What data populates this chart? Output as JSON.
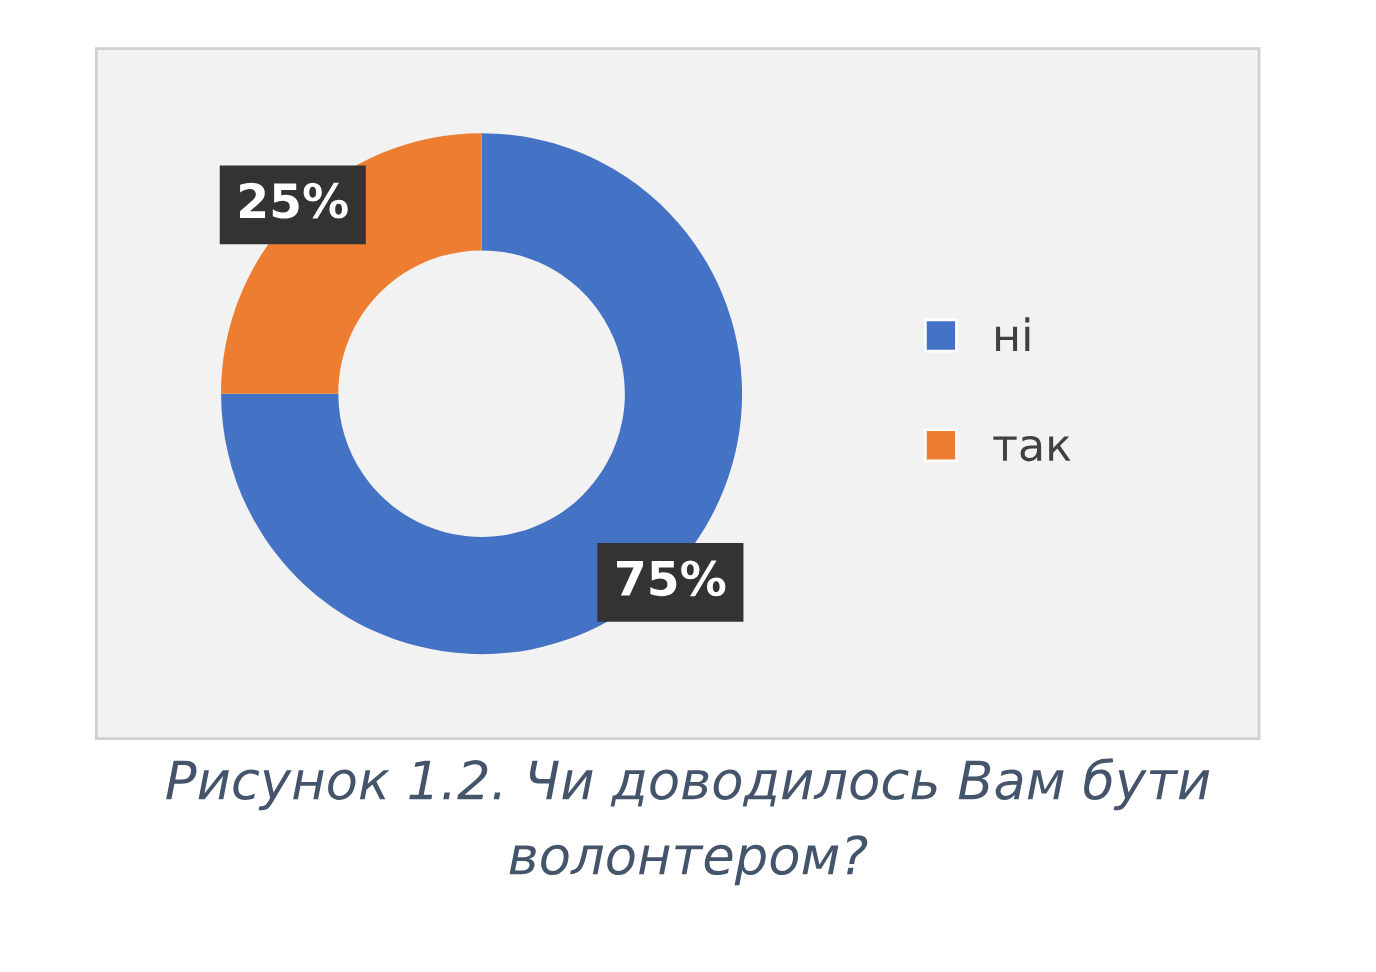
{
  "chart_data": {
    "type": "donut",
    "categories": [
      "ні",
      "так"
    ],
    "values": [
      75,
      25
    ],
    "colors": [
      "#4472c4",
      "#ed7d31"
    ],
    "value_labels": [
      "75%",
      "25%"
    ],
    "legend": "right",
    "annotations": [
      "Рисунок 1.2. Чи доводилось Вам бути волонтером?"
    ]
  }
}
